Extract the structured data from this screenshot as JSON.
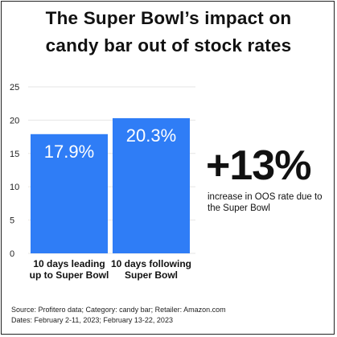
{
  "title_lines": [
    "The Super Bowl’s impact on",
    "candy bar out of stock rates"
  ],
  "colors": {
    "bar": "#2f7df6",
    "grid": "#e6e6e6",
    "text": "#111111"
  },
  "chart_data": {
    "type": "bar",
    "categories": [
      "10 days leading up to Super Bowl",
      "10 days following Super Bowl"
    ],
    "category_lines": [
      [
        "10 days leading",
        "up to Super Bowl"
      ],
      [
        "10 days following",
        "Super Bowl"
      ]
    ],
    "values": [
      17.9,
      20.3
    ],
    "data_labels": [
      "17.9%",
      "20.3%"
    ],
    "yticks": [
      0,
      5,
      10,
      15,
      20,
      25
    ],
    "ylim": [
      0,
      25
    ],
    "grid": true,
    "xlabel": "",
    "ylabel": ""
  },
  "callout": {
    "value": "+13%",
    "caption": "increase in OOS rate due to the Super Bowl"
  },
  "footnote": {
    "source": "Source: Profitero data; Category: candy bar; Retailer: Amazon.com",
    "dates": "Dates: February 2-11, 2023; February 13-22, 2023"
  }
}
